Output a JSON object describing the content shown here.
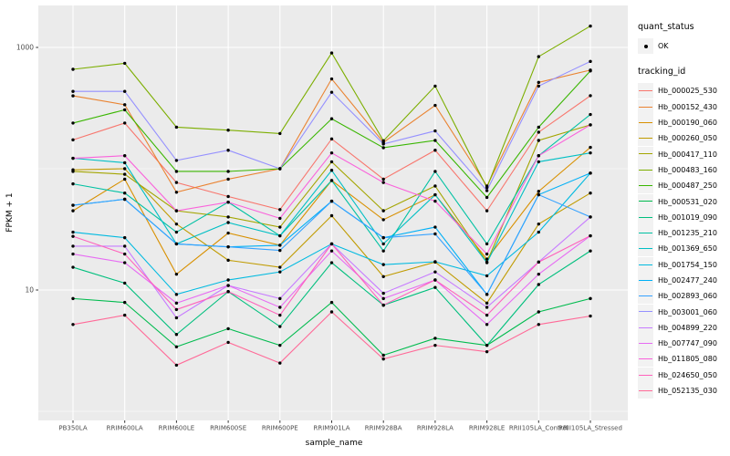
{
  "legend": {
    "quant_status": {
      "title": "quant_status",
      "items": [
        {
          "label": "OK",
          "symbol": "point"
        }
      ]
    },
    "tracking_id": {
      "title": "tracking_id",
      "items": [
        {
          "label": "Hb_000025_530",
          "color": "#F8766D"
        },
        {
          "label": "Hb_000152_430",
          "color": "#EA8331"
        },
        {
          "label": "Hb_000190_060",
          "color": "#D89000"
        },
        {
          "label": "Hb_000260_050",
          "color": "#C09B00"
        },
        {
          "label": "Hb_000417_110",
          "color": "#A3A500"
        },
        {
          "label": "Hb_000483_160",
          "color": "#7CAE00"
        },
        {
          "label": "Hb_000487_250",
          "color": "#39B600"
        },
        {
          "label": "Hb_000531_020",
          "color": "#00BB4E"
        },
        {
          "label": "Hb_001019_090",
          "color": "#00BF7D"
        },
        {
          "label": "Hb_001235_210",
          "color": "#00C1A3"
        },
        {
          "label": "Hb_001369_650",
          "color": "#00BFC4"
        },
        {
          "label": "Hb_001754_150",
          "color": "#00BAE0"
        },
        {
          "label": "Hb_002477_240",
          "color": "#00B0F6"
        },
        {
          "label": "Hb_002893_060",
          "color": "#35A2FF"
        },
        {
          "label": "Hb_003001_060",
          "color": "#9590FF"
        },
        {
          "label": "Hb_004899_220",
          "color": "#C77CFF"
        },
        {
          "label": "Hb_007747_090",
          "color": "#E76BF3"
        },
        {
          "label": "Hb_011805_080",
          "color": "#FA62DB"
        },
        {
          "label": "Hb_024650_050",
          "color": "#FF62BC"
        },
        {
          "label": "Hb_052135_030",
          "color": "#FF6A98"
        }
      ]
    }
  },
  "chart_data": {
    "type": "line",
    "title": "",
    "xlabel": "sample_name",
    "ylabel": "FPKM + 1",
    "y_scale": "log10",
    "y_tick_values": [
      1000,
      10
    ],
    "y_tick_labels": [
      "1000",
      "10"
    ],
    "y_minor_values": [
      100,
      1
    ],
    "ylim": [
      0.9,
      2300
    ],
    "grid": true,
    "legend_position": "right",
    "panel_bg": "#EBEBEB",
    "grid_color": "#FFFFFF",
    "point_color": "#000000",
    "tick_text_color": "#4D4D4D",
    "categories": [
      "PB350LA",
      "RRIM600LA",
      "RRIM600LE",
      "RRIM600SE",
      "RRIM600PE",
      "RRIM901LA",
      "RRIM928BA",
      "RRIM928LA",
      "RRIM928LE",
      "RRII105LA_Control",
      "RRII105LA_Stressed"
    ],
    "series": [
      {
        "name": "Hb_000025_530",
        "color": "#F8766D",
        "values": [
          173,
          238,
          77,
          59,
          46,
          176,
          82,
          142,
          45,
          200,
          400
        ]
      },
      {
        "name": "Hb_000152_430",
        "color": "#EA8331",
        "values": [
          399,
          337,
          64,
          82,
          100,
          550,
          165,
          333,
          72,
          515,
          650
        ]
      },
      {
        "name": "Hb_000190_060",
        "color": "#D89000",
        "values": [
          45,
          82,
          13.5,
          29.5,
          23.4,
          80,
          38,
          61,
          18,
          65,
          150
        ]
      },
      {
        "name": "Hb_000260_050",
        "color": "#C09B00",
        "values": [
          98,
          100,
          35,
          17.6,
          15.4,
          41,
          12.9,
          17,
          7.8,
          35,
          63
        ]
      },
      {
        "name": "Hb_000417_110",
        "color": "#A3A500",
        "values": [
          95,
          90,
          45,
          40,
          33,
          114,
          45,
          72,
          17,
          171,
          230
        ]
      },
      {
        "name": "Hb_000483_160",
        "color": "#7CAE00",
        "values": [
          660,
          740,
          220,
          208,
          195,
          900,
          170,
          480,
          70,
          840,
          1500
        ]
      },
      {
        "name": "Hb_000487_250",
        "color": "#39B600",
        "values": [
          238,
          306,
          95,
          95,
          100,
          258,
          149,
          171,
          58,
          220,
          640
        ]
      },
      {
        "name": "Hb_000531_020",
        "color": "#00BB4E",
        "values": [
          8.5,
          7.9,
          3.4,
          4.8,
          3.5,
          7.9,
          2.9,
          4.0,
          3.5,
          6.6,
          8.5
        ]
      },
      {
        "name": "Hb_001019_090",
        "color": "#00BF7D",
        "values": [
          15.4,
          11.4,
          4.3,
          9.7,
          5.0,
          16.8,
          7.5,
          10.5,
          3.5,
          11.1,
          21
        ]
      },
      {
        "name": "Hb_001235_210",
        "color": "#00C1A3",
        "values": [
          75,
          63,
          30,
          53,
          28,
          80,
          21,
          95,
          24,
          128,
          280
        ]
      },
      {
        "name": "Hb_001369_650",
        "color": "#00BFC4",
        "values": [
          122,
          112,
          24,
          36,
          28,
          97,
          24,
          61,
          16.8,
          114,
          135
        ]
      },
      {
        "name": "Hb_001754_150",
        "color": "#00BAE0",
        "values": [
          30,
          27,
          9.2,
          12.1,
          14.1,
          24,
          16.2,
          17.1,
          13.1,
          30,
          92
        ]
      },
      {
        "name": "Hb_002477_240",
        "color": "#00B0F6",
        "values": [
          50,
          56,
          24,
          22.7,
          23.4,
          54,
          27,
          33,
          9.2,
          61,
          92
        ]
      },
      {
        "name": "Hb_002893_060",
        "color": "#35A2FF",
        "values": [
          50,
          56,
          24,
          22.7,
          21.2,
          54,
          27,
          29,
          9.2,
          61,
          40
        ]
      },
      {
        "name": "Hb_003001_060",
        "color": "#9590FF",
        "values": [
          434,
          434,
          117,
          142,
          100,
          427,
          160,
          205,
          66,
          480,
          767
        ]
      },
      {
        "name": "Hb_004899_220",
        "color": "#C77CFF",
        "values": [
          23,
          23,
          5.9,
          10.9,
          8.5,
          24,
          9.4,
          14.1,
          7.2,
          17,
          40
        ]
      },
      {
        "name": "Hb_007747_090",
        "color": "#E76BF3",
        "values": [
          19.8,
          16.8,
          7.8,
          10.9,
          7.2,
          21,
          8.5,
          12.1,
          5.2,
          13.5,
          28
        ]
      },
      {
        "name": "Hb_011805_080",
        "color": "#FA62DB",
        "values": [
          122,
          128,
          45,
          53,
          39,
          135,
          77,
          54,
          19.8,
          128,
          230
        ]
      },
      {
        "name": "Hb_024650_050",
        "color": "#FF62BC",
        "values": [
          27.7,
          19.8,
          6.9,
          9.7,
          6.2,
          24,
          7.5,
          12.1,
          6.2,
          17,
          28
        ]
      },
      {
        "name": "Hb_052135_030",
        "color": "#FF6A98",
        "values": [
          5.2,
          6.2,
          2.4,
          3.7,
          2.5,
          6.6,
          2.7,
          3.5,
          3.1,
          5.2,
          6.1
        ]
      }
    ]
  }
}
